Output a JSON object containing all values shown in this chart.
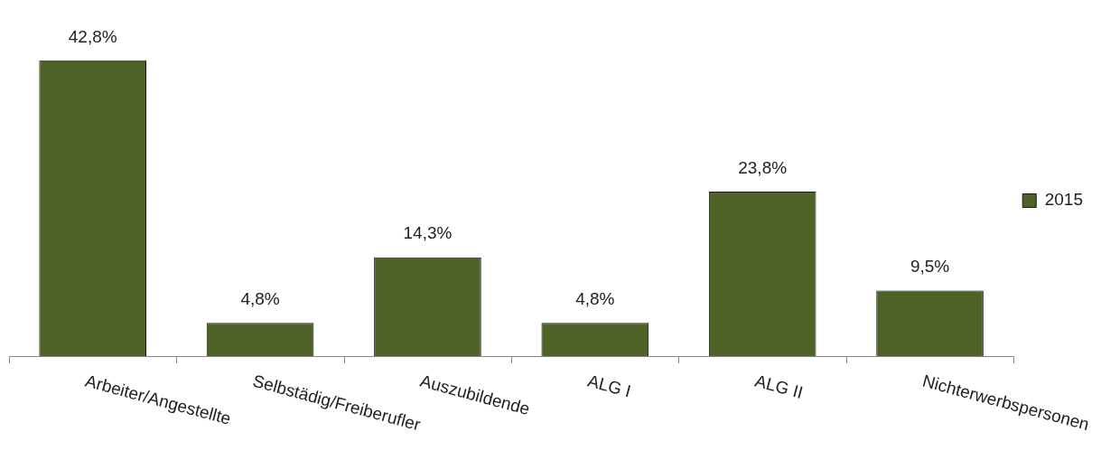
{
  "chart_data": {
    "type": "bar",
    "categories": [
      "Arbeiter/Angestellte",
      "Selbstädig/Freiberufler",
      "Auszubildende",
      "ALG I",
      "ALG II",
      "Nichterwerbspersonen"
    ],
    "series": [
      {
        "name": "2015",
        "color": "#4f6228",
        "values": [
          42.8,
          4.8,
          14.3,
          4.8,
          23.8,
          9.5
        ],
        "value_labels": [
          "42,8%",
          "4,8%",
          "14,3%",
          "4,8%",
          "23,8%",
          "9,5%"
        ]
      }
    ],
    "legend": "right"
  }
}
